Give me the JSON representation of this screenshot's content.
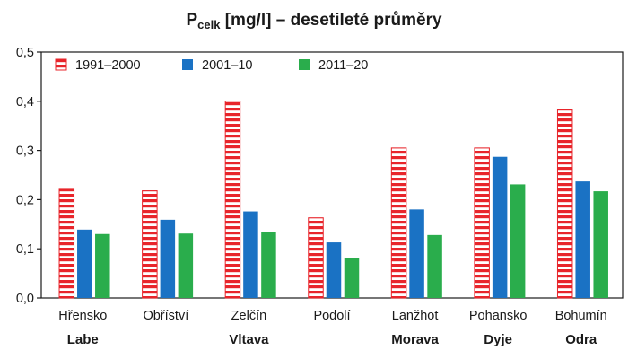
{
  "chart_data": {
    "type": "bar",
    "title_main": "P",
    "title_sub": "celk",
    "title_rest": " [mg/l] – desetileté průměry",
    "categories": [
      "Hřensko",
      "Obříství",
      "Zelčín",
      "Podolí",
      "Lanžhot",
      "Pohansko",
      "Bohumín"
    ],
    "rivers": [
      "Labe",
      "",
      "Vltava",
      "",
      "Morava",
      "Dyje",
      "Odra"
    ],
    "series": [
      {
        "name": "1991–2000",
        "values": [
          0.221,
          0.218,
          0.4,
          0.163,
          0.305,
          0.305,
          0.383
        ],
        "color": "#e8252b",
        "pattern": "horizontal-stripes"
      },
      {
        "name": "2001–10",
        "values": [
          0.139,
          0.159,
          0.176,
          0.113,
          0.18,
          0.287,
          0.237
        ],
        "color": "#1a72c4"
      },
      {
        "name": "2011–20",
        "values": [
          0.13,
          0.131,
          0.134,
          0.082,
          0.128,
          0.231,
          0.217
        ],
        "color": "#2aad4c"
      }
    ],
    "yticks": [
      "0,0",
      "0,1",
      "0,2",
      "0,3",
      "0,4",
      "0,5"
    ],
    "ylim": [
      0,
      0.5
    ],
    "grid": false,
    "legend_position": "top-left"
  }
}
